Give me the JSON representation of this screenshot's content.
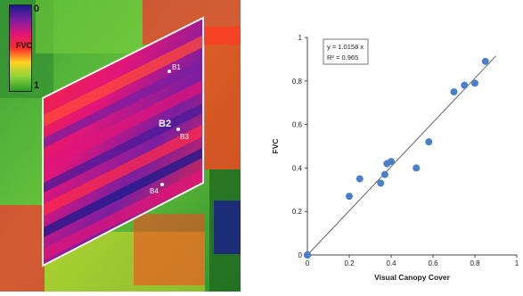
{
  "heatmap_panel": {
    "colorbar": {
      "top_label": "0",
      "title": "FVC",
      "bottom_label": "1",
      "colors": [
        "#1a1a8c",
        "#7a1fa0",
        "#e0157a",
        "#ff2a2a",
        "#ffd21f",
        "#8cd43a",
        "#2a9a2a"
      ]
    },
    "labels": [
      "B1",
      "B2",
      "B3",
      "B4"
    ]
  },
  "chart_data": {
    "type": "scatter",
    "title": "",
    "xlabel": "Visual Canopy Cover",
    "ylabel": "FVC",
    "xlim": [
      0,
      1
    ],
    "ylim": [
      0,
      1
    ],
    "xticks": [
      "0",
      "0.2",
      "0.4",
      "0.6",
      "0.8",
      "1"
    ],
    "yticks": [
      "0",
      "0.2",
      "0.4",
      "0.6",
      "0.8",
      "1"
    ],
    "point_color": "#4a7fc9",
    "grid": false,
    "series": [
      {
        "x": [
          0.0,
          0.0,
          0.2,
          0.25,
          0.35,
          0.37,
          0.38,
          0.4,
          0.52,
          0.58,
          0.7,
          0.75,
          0.8,
          0.85
        ],
        "y": [
          0.0,
          0.0,
          0.27,
          0.35,
          0.33,
          0.37,
          0.42,
          0.43,
          0.4,
          0.52,
          0.75,
          0.78,
          0.79,
          0.89
        ]
      }
    ],
    "trendline": {
      "slope": 1.0158,
      "intercept": 0,
      "x_end": 0.9
    },
    "annotation": {
      "equation": "y = 1.0158 x",
      "r2": "R² = 0.965"
    }
  }
}
